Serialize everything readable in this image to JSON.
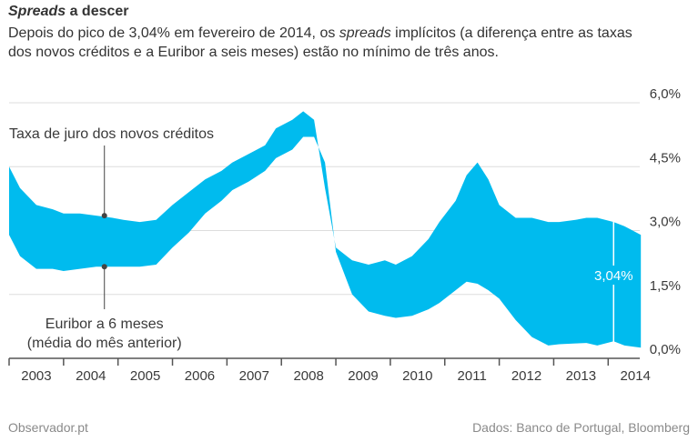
{
  "header": {
    "title_em": "Spreads",
    "title_rest": " a descer",
    "subtitle_part1": "Depois do pico de 3,04% em fevereiro de 2014, os ",
    "subtitle_em": "spreads",
    "subtitle_part2": " implícitos (a diferença entre as taxas dos novos créditos e a Euribor a seis meses) estão no mínimo de três anos."
  },
  "footer": {
    "source_left": "Observador.pt",
    "source_right": "Dados: Banco de Portugal, Bloomberg"
  },
  "colors": {
    "fill": "#00bbee",
    "grid": "#dddddd",
    "axis": "#555555",
    "text": "#3a3a3a"
  },
  "chart_data": {
    "type": "area",
    "x_ticks": [
      "2003",
      "2004",
      "2005",
      "2006",
      "2007",
      "2008",
      "2009",
      "2010",
      "2011",
      "2012",
      "2013",
      "2014"
    ],
    "y_ticks": [
      "0,0%",
      "1,5%",
      "3,0%",
      "4,5%",
      "6,0%"
    ],
    "ylim": [
      0,
      6
    ],
    "grid": true,
    "annotations": {
      "upper_label": "Taxa de juro dos novos créditos",
      "lower_label_line1": "Euribor a 6 meses",
      "lower_label_line2": "(média do mês anterior)",
      "spread_label": "3,04%"
    },
    "series": [
      {
        "name": "Taxa de juro dos novos créditos",
        "x": [
          2003.0,
          2003.2,
          2003.5,
          2003.8,
          2004.0,
          2004.3,
          2004.6,
          2004.9,
          2005.1,
          2005.4,
          2005.7,
          2006.0,
          2006.3,
          2006.6,
          2006.9,
          2007.1,
          2007.4,
          2007.7,
          2007.9,
          2008.2,
          2008.4,
          2008.6,
          2008.8,
          2009.0,
          2009.3,
          2009.6,
          2009.9,
          2010.1,
          2010.4,
          2010.7,
          2010.9,
          2011.2,
          2011.4,
          2011.6,
          2011.8,
          2012.0,
          2012.3,
          2012.6,
          2012.9,
          2013.1,
          2013.4,
          2013.6,
          2013.8,
          2014.1,
          2014.3,
          2014.6
        ],
        "values": [
          4.5,
          4.0,
          3.6,
          3.5,
          3.4,
          3.4,
          3.35,
          3.3,
          3.25,
          3.2,
          3.25,
          3.6,
          3.9,
          4.2,
          4.4,
          4.6,
          4.8,
          5.0,
          5.4,
          5.6,
          5.8,
          5.6,
          4.0,
          2.6,
          2.3,
          2.2,
          2.3,
          2.2,
          2.4,
          2.8,
          3.2,
          3.7,
          4.3,
          4.6,
          4.2,
          3.6,
          3.3,
          3.3,
          3.2,
          3.2,
          3.25,
          3.3,
          3.3,
          3.2,
          3.1,
          2.9
        ]
      },
      {
        "name": "Euribor a 6 meses (média do mês anterior)",
        "x": [
          2003.0,
          2003.2,
          2003.5,
          2003.8,
          2004.0,
          2004.3,
          2004.6,
          2004.9,
          2005.1,
          2005.4,
          2005.7,
          2006.0,
          2006.3,
          2006.6,
          2006.9,
          2007.1,
          2007.4,
          2007.7,
          2007.9,
          2008.2,
          2008.4,
          2008.6,
          2008.8,
          2009.0,
          2009.3,
          2009.6,
          2009.9,
          2010.1,
          2010.4,
          2010.7,
          2010.9,
          2011.2,
          2011.4,
          2011.6,
          2011.8,
          2012.0,
          2012.3,
          2012.6,
          2012.9,
          2013.1,
          2013.4,
          2013.6,
          2013.8,
          2014.1,
          2014.3,
          2014.6
        ],
        "values": [
          2.9,
          2.4,
          2.1,
          2.1,
          2.05,
          2.1,
          2.15,
          2.15,
          2.15,
          2.15,
          2.2,
          2.6,
          2.95,
          3.4,
          3.7,
          3.95,
          4.15,
          4.4,
          4.7,
          4.9,
          5.2,
          5.2,
          4.6,
          2.5,
          1.5,
          1.1,
          1.0,
          0.95,
          1.0,
          1.15,
          1.3,
          1.6,
          1.8,
          1.75,
          1.6,
          1.4,
          0.9,
          0.5,
          0.3,
          0.33,
          0.35,
          0.36,
          0.3,
          0.4,
          0.3,
          0.25
        ]
      }
    ]
  }
}
